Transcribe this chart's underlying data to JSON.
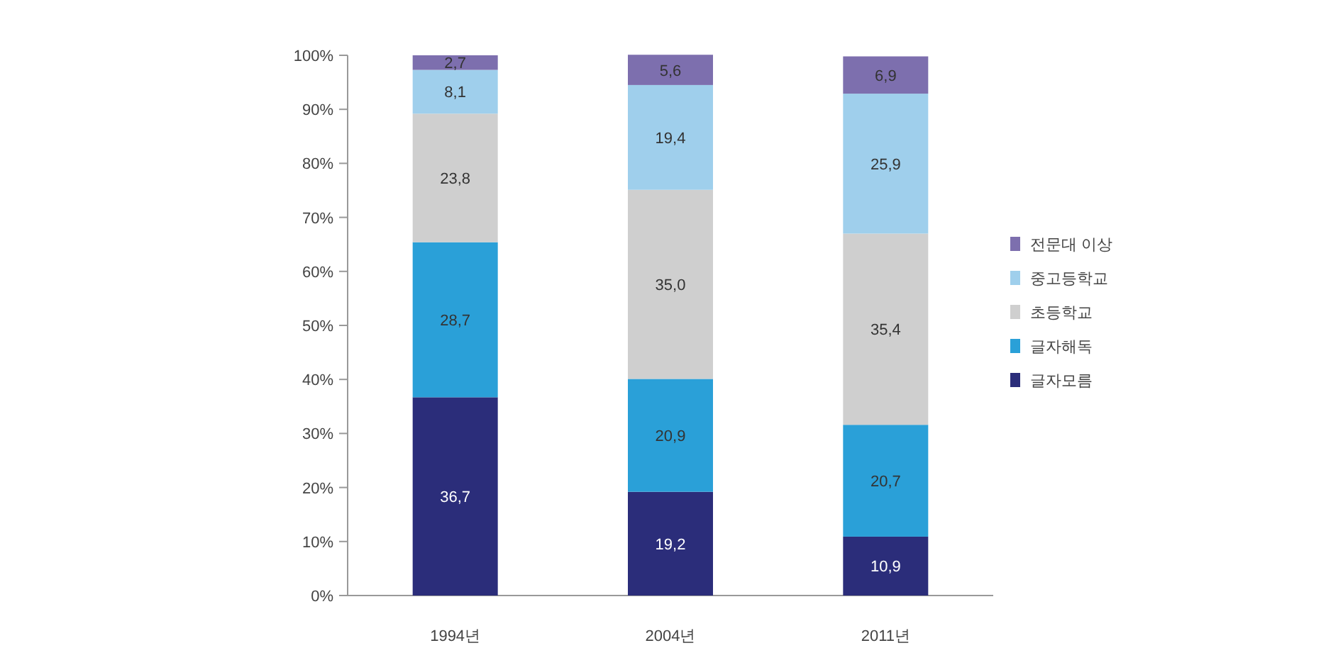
{
  "chart_data": {
    "type": "bar",
    "stacked": true,
    "categories": [
      "1994년",
      "2004년",
      "2011년"
    ],
    "series": [
      {
        "name": "글자모름",
        "color": "#2b2d7a",
        "values": [
          36.7,
          19.2,
          10.9
        ],
        "value_labels": [
          "36,7",
          "19,2",
          "10,9"
        ]
      },
      {
        "name": "글자해독",
        "color": "#2aa0d8",
        "values": [
          28.7,
          20.9,
          20.7
        ],
        "value_labels": [
          "28,7",
          "20,9",
          "20,7"
        ]
      },
      {
        "name": "초등학교",
        "color": "#cfcfcf",
        "values": [
          23.8,
          35.0,
          35.4
        ],
        "value_labels": [
          "23,8",
          "35,0",
          "35,4"
        ]
      },
      {
        "name": "중고등학교",
        "color": "#9fcfec",
        "values": [
          8.1,
          19.4,
          25.9
        ],
        "value_labels": [
          "8,1",
          "19,4",
          "25,9"
        ]
      },
      {
        "name": "전문대 이상",
        "color": "#7d6fae",
        "values": [
          2.7,
          5.6,
          6.9
        ],
        "value_labels": [
          "2,7",
          "5,6",
          "6,9"
        ]
      }
    ],
    "ylim": [
      0,
      100
    ],
    "yticks": [
      {
        "value": 0,
        "label": "0%"
      },
      {
        "value": 10,
        "label": "10%"
      },
      {
        "value": 20,
        "label": "20%"
      },
      {
        "value": 30,
        "label": "30%"
      },
      {
        "value": 40,
        "label": "40%"
      },
      {
        "value": 50,
        "label": "50%"
      },
      {
        "value": 60,
        "label": "60%"
      },
      {
        "value": 70,
        "label": "70%"
      },
      {
        "value": 80,
        "label": "80%"
      },
      {
        "value": 90,
        "label": "90%"
      },
      {
        "value": 100,
        "label": "100%"
      }
    ],
    "grid": false,
    "legend": "right"
  }
}
